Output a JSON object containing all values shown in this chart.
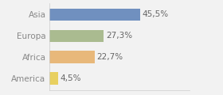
{
  "categories": [
    "Asia",
    "Europa",
    "Africa",
    "America"
  ],
  "values": [
    45.5,
    27.3,
    22.7,
    4.5
  ],
  "labels": [
    "45,5%",
    "27,3%",
    "22,7%",
    "4,5%"
  ],
  "bar_colors": [
    "#7090bf",
    "#aabb90",
    "#e8b87a",
    "#e8d060"
  ],
  "background_color": "#f2f2f2",
  "xlim": [
    0,
    70
  ],
  "bar_height": 0.58,
  "label_fontsize": 7.5,
  "tick_fontsize": 7.5,
  "label_color": "#666666",
  "tick_color": "#888888"
}
